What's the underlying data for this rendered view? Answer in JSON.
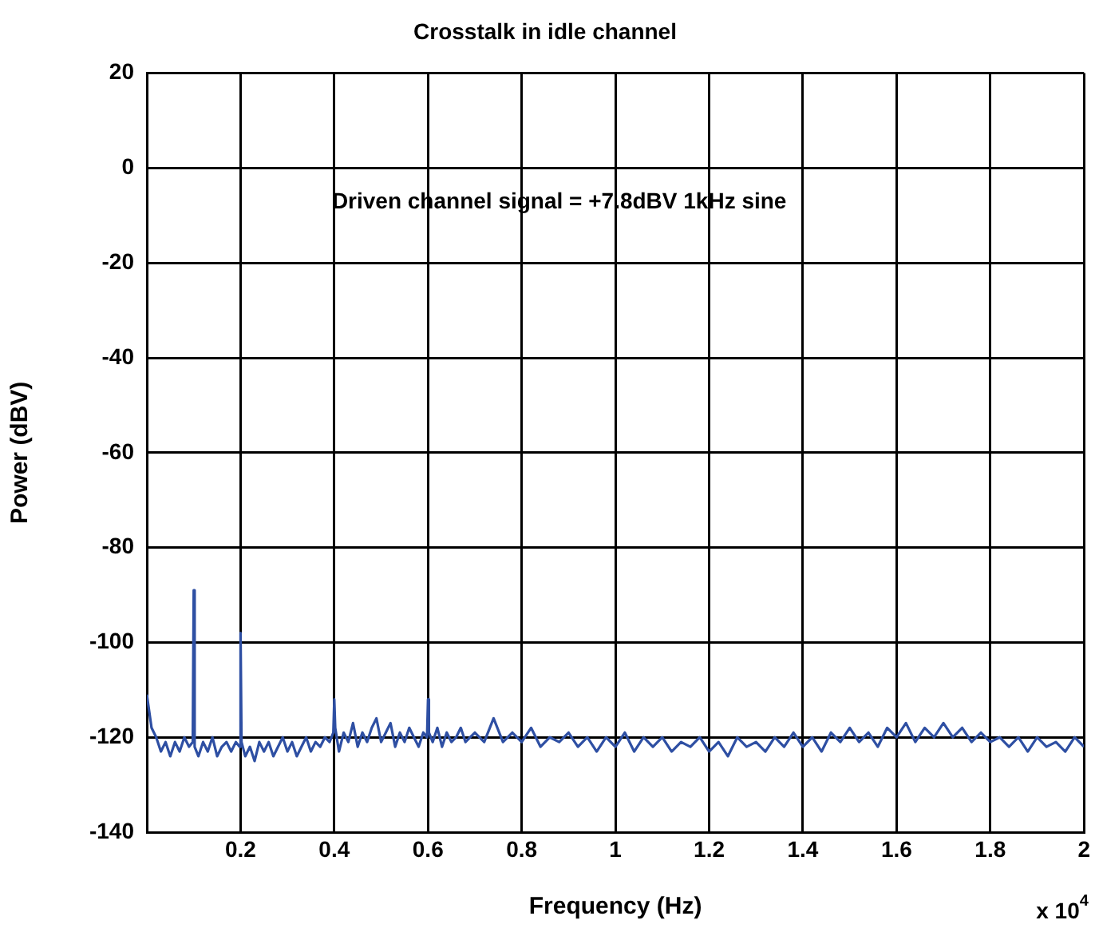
{
  "chart_data": {
    "type": "line",
    "title": "Crosstalk in idle channel",
    "xlabel": "Frequency (Hz)",
    "ylabel": "Power (dBV)",
    "annotations": [
      "Driven channel signal = +7.8dBV 1kHz sine",
      "x 10$^{4}$"
    ],
    "xlim": [
      0,
      2
    ],
    "ylim": [
      -140,
      20
    ],
    "xticks": [
      0.2,
      0.4,
      0.6,
      0.8,
      1,
      1.2,
      1.4,
      1.6,
      1.8,
      2
    ],
    "yticks": [
      20,
      0,
      -20,
      -40,
      -60,
      -80,
      -100,
      -120,
      -140
    ],
    "grid": true,
    "legend": false,
    "marker": "none",
    "line_style": "solid",
    "series": [
      {
        "color": "#2e4fa3",
        "x": [
          0,
          0.01,
          0.02,
          0.03,
          0.04,
          0.05,
          0.06,
          0.07,
          0.08,
          0.09,
          0.098,
          0.1,
          0.102,
          0.11,
          0.12,
          0.13,
          0.14,
          0.15,
          0.16,
          0.17,
          0.18,
          0.19,
          0.198,
          0.2,
          0.202,
          0.21,
          0.22,
          0.23,
          0.24,
          0.25,
          0.26,
          0.27,
          0.28,
          0.29,
          0.3,
          0.31,
          0.32,
          0.33,
          0.34,
          0.35,
          0.36,
          0.37,
          0.38,
          0.39,
          0.398,
          0.4,
          0.402,
          0.41,
          0.42,
          0.43,
          0.44,
          0.45,
          0.46,
          0.47,
          0.48,
          0.49,
          0.5,
          0.51,
          0.52,
          0.53,
          0.54,
          0.55,
          0.56,
          0.57,
          0.58,
          0.59,
          0.598,
          0.6,
          0.602,
          0.61,
          0.62,
          0.63,
          0.64,
          0.65,
          0.66,
          0.67,
          0.68,
          0.69,
          0.7,
          0.72,
          0.74,
          0.76,
          0.78,
          0.8,
          0.82,
          0.84,
          0.86,
          0.88,
          0.9,
          0.92,
          0.94,
          0.96,
          0.98,
          1,
          1.02,
          1.04,
          1.06,
          1.08,
          1.1,
          1.12,
          1.14,
          1.16,
          1.18,
          1.2,
          1.22,
          1.24,
          1.26,
          1.28,
          1.3,
          1.32,
          1.34,
          1.36,
          1.38,
          1.4,
          1.42,
          1.44,
          1.46,
          1.48,
          1.5,
          1.52,
          1.54,
          1.56,
          1.58,
          1.6,
          1.62,
          1.64,
          1.66,
          1.68,
          1.7,
          1.72,
          1.74,
          1.76,
          1.78,
          1.8,
          1.82,
          1.84,
          1.86,
          1.88,
          1.9,
          1.92,
          1.94,
          1.96,
          1.98,
          2
        ],
        "values": [
          -111,
          -118,
          -120,
          -123,
          -121,
          -124,
          -121,
          -123,
          -120,
          -122,
          -121,
          -89,
          -122,
          -124,
          -121,
          -123,
          -120,
          -124,
          -122,
          -121,
          -123,
          -121,
          -122,
          -98,
          -121,
          -124,
          -122,
          -125,
          -121,
          -123,
          -121,
          -124,
          -122,
          -120,
          -123,
          -121,
          -124,
          -122,
          -120,
          -123,
          -121,
          -122,
          -120,
          -121,
          -119,
          -112,
          -118,
          -123,
          -119,
          -121,
          -117,
          -122,
          -119,
          -121,
          -118,
          -116,
          -121,
          -119,
          -117,
          -122,
          -119,
          -121,
          -118,
          -120,
          -122,
          -119,
          -120,
          -112,
          -119,
          -121,
          -118,
          -122,
          -119,
          -121,
          -120,
          -118,
          -121,
          -120,
          -119,
          -121,
          -116,
          -121,
          -119,
          -121,
          -118,
          -122,
          -120,
          -121,
          -119,
          -122,
          -120,
          -123,
          -120,
          -122,
          -119,
          -123,
          -120,
          -122,
          -120,
          -123,
          -121,
          -122,
          -120,
          -123,
          -121,
          -124,
          -120,
          -122,
          -121,
          -123,
          -120,
          -122,
          -119,
          -122,
          -120,
          -123,
          -119,
          -121,
          -118,
          -121,
          -119,
          -122,
          -118,
          -120,
          -117,
          -121,
          -118,
          -120,
          -117,
          -120,
          -118,
          -121,
          -119,
          -121,
          -120,
          -122,
          -120,
          -123,
          -120,
          -122,
          -121,
          -123,
          -120,
          -122
        ]
      }
    ]
  }
}
